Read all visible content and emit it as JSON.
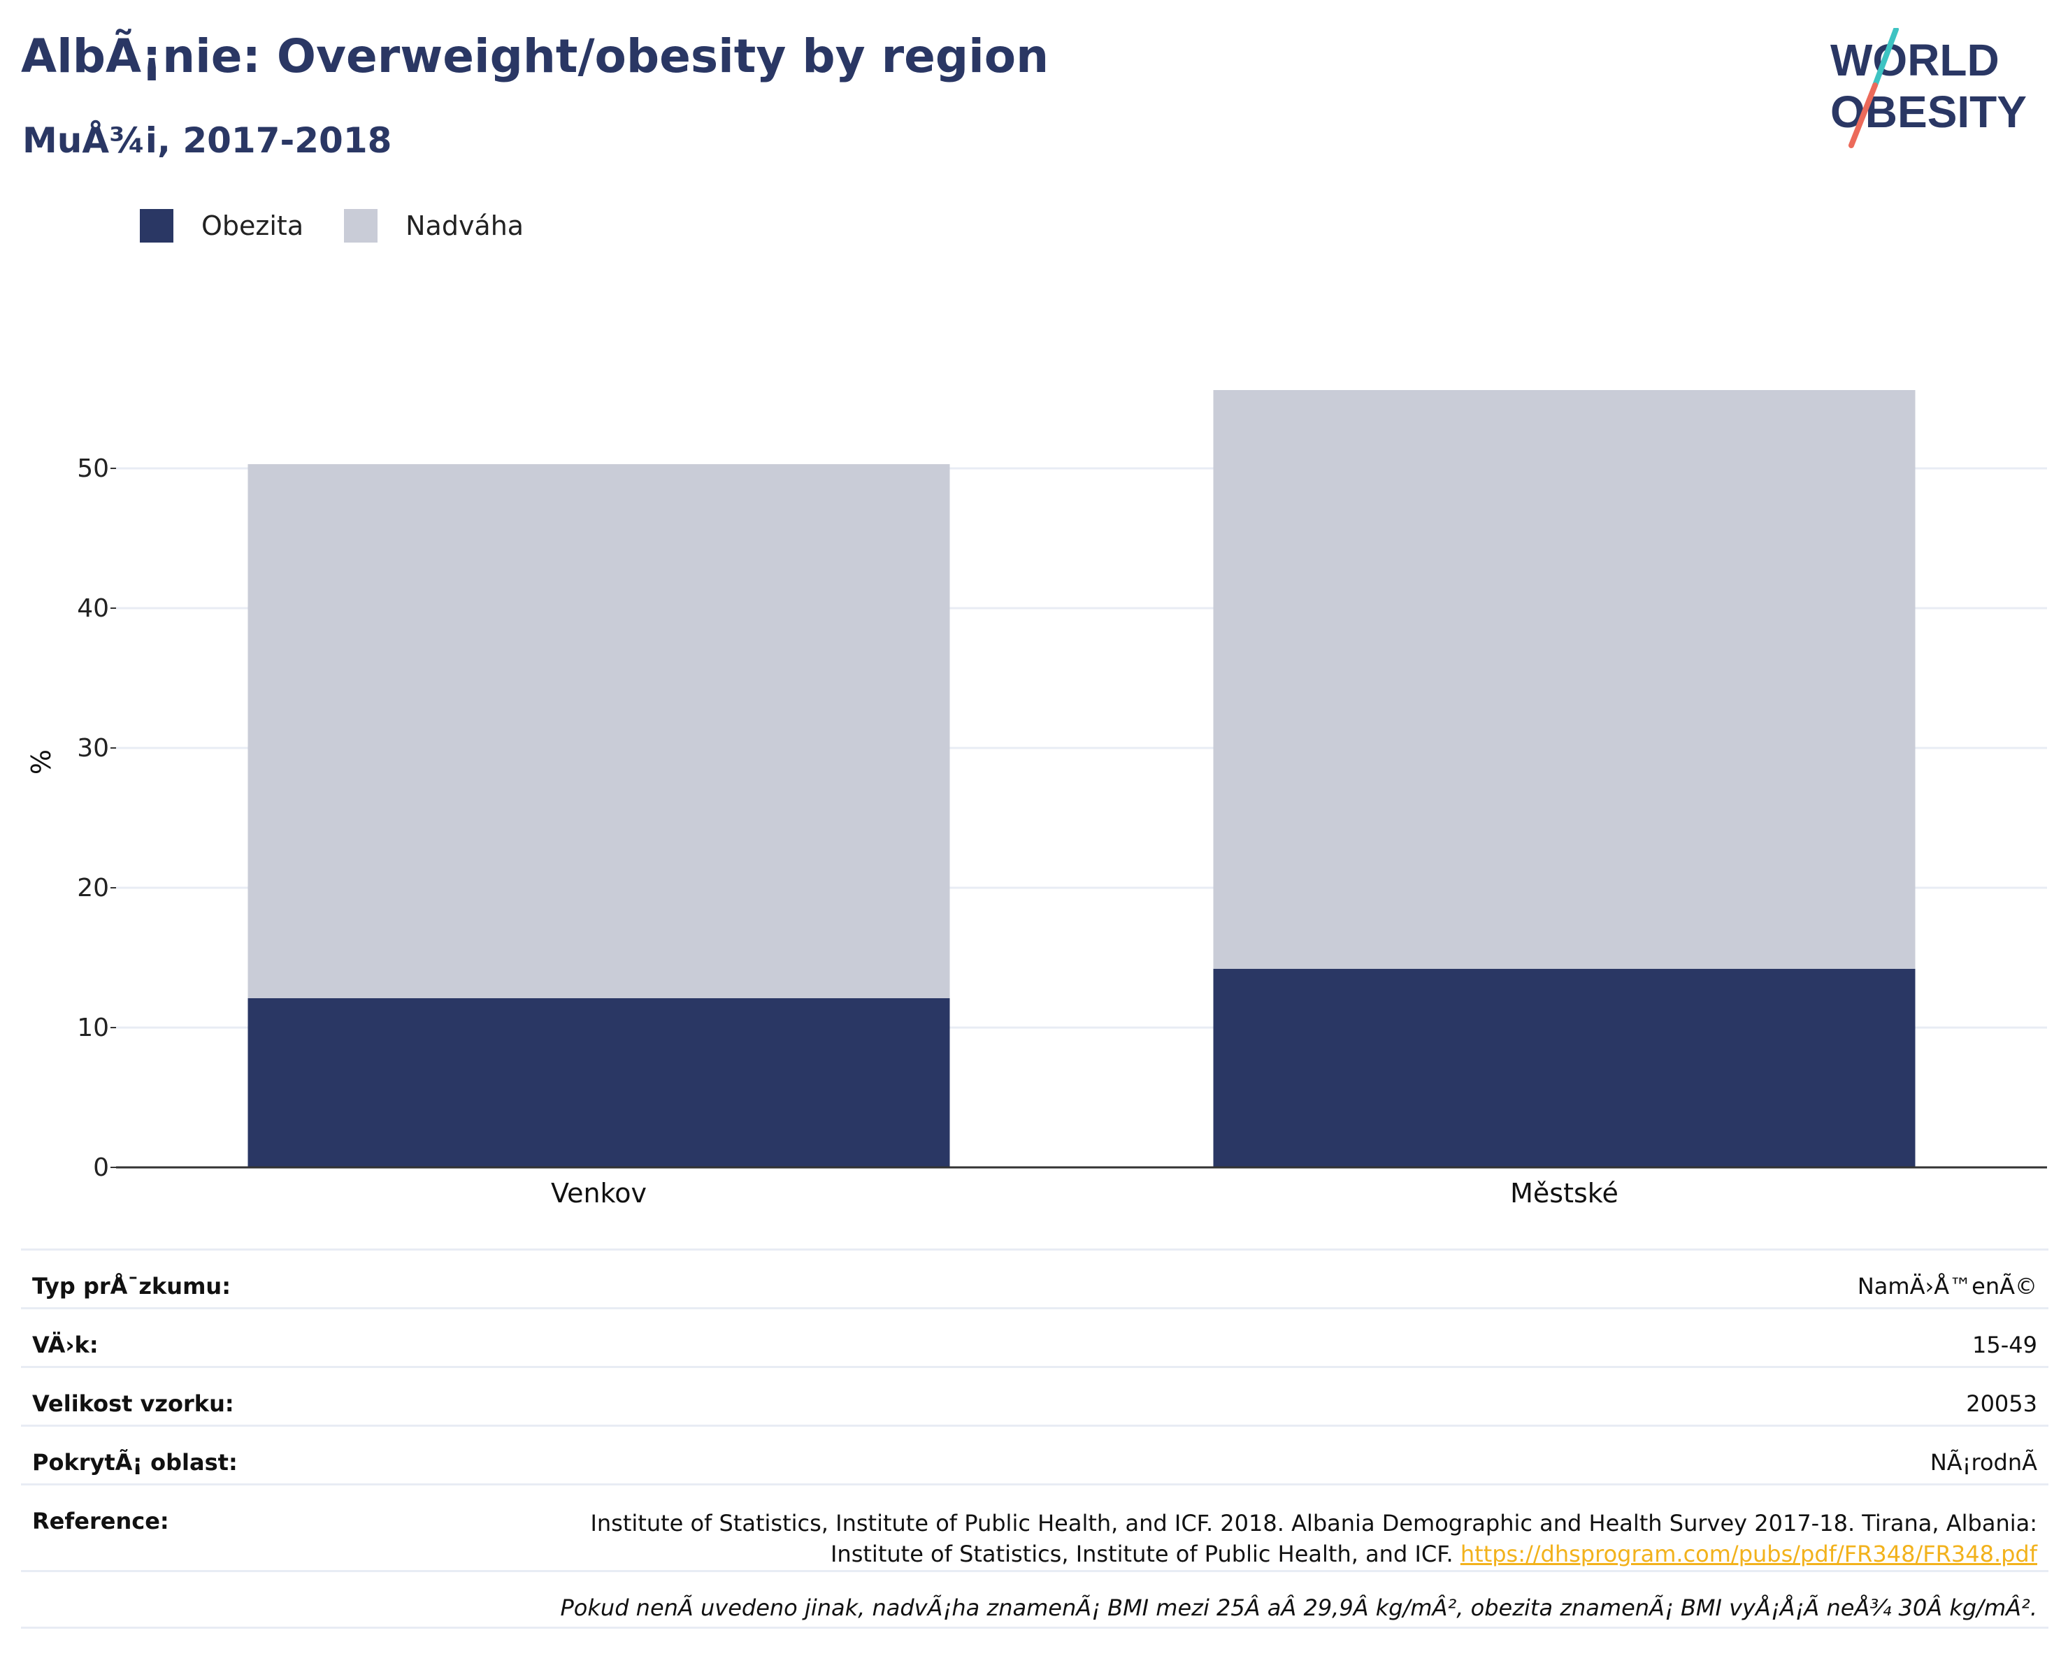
{
  "header": {
    "title": "AlbÃ¡nie: Overweight/obesity by region",
    "subtitle": "MuÅ¾i, 2017-2018"
  },
  "logo": {
    "line1": "WORLD",
    "line2": "OBESITY"
  },
  "colors": {
    "obezita": "#2a3764",
    "nadvaha": "#c9ccd7",
    "title": "#2a3764",
    "link": "#f2b21c",
    "accent_teal": "#3ec3c2",
    "accent_red": "#ec6a5a"
  },
  "legend": [
    {
      "label": "Obezita",
      "color": "#2a3764"
    },
    {
      "label": "Nadváha",
      "color": "#c9ccd7"
    }
  ],
  "chart_data": {
    "type": "bar",
    "stacked": true,
    "categories": [
      "Venkov",
      "Městské"
    ],
    "series": [
      {
        "name": "Obezita",
        "values": [
          12.1,
          14.2
        ]
      },
      {
        "name": "Nadváha",
        "values": [
          38.2,
          41.4
        ]
      }
    ],
    "ylabel": "%",
    "ylim": [
      0,
      58
    ],
    "yticks": [
      0,
      10,
      20,
      30,
      40,
      50
    ],
    "grid": true,
    "legend_position": "top-left"
  },
  "meta": {
    "rows": [
      {
        "key": "Typ prÅ¯zkumu:",
        "value": "NamÄ›Å™enÃ©"
      },
      {
        "key": "VÄ›k:",
        "value": "15-49"
      },
      {
        "key": "Velikost vzorku:",
        "value": "20053"
      },
      {
        "key": "PokrytÃ¡ oblast:",
        "value": "NÃ¡rodnÃ"
      }
    ],
    "reference_key": "Reference:",
    "reference_text_1": "Institute of Statistics, Institute of Public Health, and ICF. 2018. Albania Demographic and Health Survey 2017-18. Tirana, Albania:",
    "reference_text_2": "Institute of Statistics, Institute of Public Health, and ICF.",
    "reference_link": "https://dhsprogram.com/pubs/pdf/FR348/FR348.pdf",
    "note": "Pokud nenÃ uvedeno jinak, nadvÃ¡ha znamenÃ¡ BMI mezi 25Â aÂ 29,9Â kg/mÂ², obezita znamenÃ¡ BMI vyÅ¡Å¡Ã neÅ¾ 30Â kg/mÂ²."
  }
}
